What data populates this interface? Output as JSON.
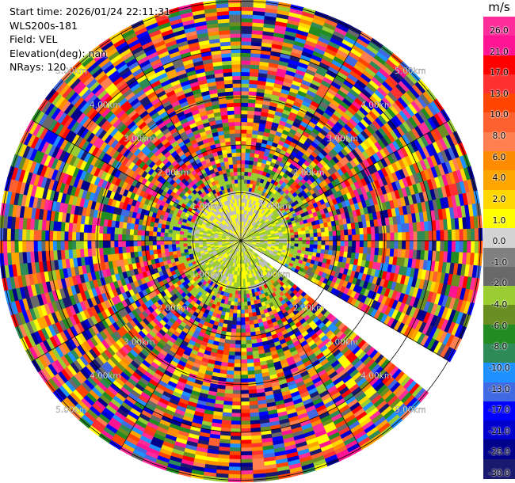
{
  "header": {
    "start_time": "Start time: 2026/01/24 22:11:31",
    "instrument": "WLS200s-181",
    "field": "Field: VEL",
    "elevation": "Elevation(deg): nan",
    "nrays": "NRays: 120"
  },
  "colorbar": {
    "unit": "m/s",
    "ticks": [
      "26.0",
      "21.0",
      "17.0",
      "13.0",
      "10.0",
      "8.0",
      "6.0",
      "4.0",
      "2.0",
      "1.0",
      "0.0",
      "-1.0",
      "-2.0",
      "-4.0",
      "-6.0",
      "-8.0",
      "-10.0",
      "-13.0",
      "-17.0",
      "-21.0",
      "-26.0",
      "-30.0"
    ],
    "colors": [
      "#ff2d9a",
      "#ff1493",
      "#ff0000",
      "#ff3030",
      "#ff4500",
      "#ff6030",
      "#ff7f50",
      "#ff8c00",
      "#ffa500",
      "#ffd700",
      "#ffff00",
      "#d3d3d3",
      "#808080",
      "#696969",
      "#9acd32",
      "#6b8e23",
      "#228b22",
      "#2e8b57",
      "#1e90ff",
      "#4169e1",
      "#0000ff",
      "#0000cd",
      "#00008b",
      "#191970"
    ]
  },
  "chart_data": {
    "type": "ppi",
    "field": "VEL",
    "nrays": 120,
    "range_rings_km": [
      1,
      2,
      3,
      4,
      5
    ],
    "ring_label_text": [
      "1.00km",
      "2.00km",
      "3.00km",
      "4.00km",
      "5.00km"
    ],
    "vmin": -30.0,
    "vmax": 26.0,
    "missing_sector_deg": [
      120,
      128
    ]
  }
}
